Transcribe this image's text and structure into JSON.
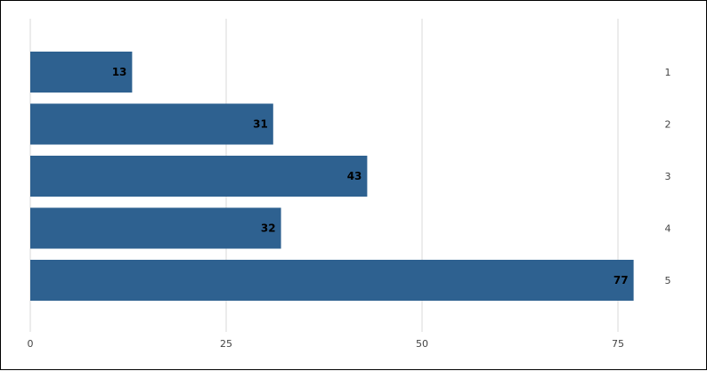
{
  "chart_data": {
    "type": "bar",
    "orientation": "horizontal",
    "categories": [
      "1",
      "2",
      "3",
      "4",
      "5"
    ],
    "values": [
      13,
      31,
      43,
      32,
      77
    ],
    "x_ticks": [
      "0",
      "25",
      "50",
      "75"
    ],
    "xlim": [
      0,
      80
    ],
    "bar_color": "#2e6190",
    "grid": true,
    "title": "",
    "xlabel": "",
    "ylabel": ""
  }
}
